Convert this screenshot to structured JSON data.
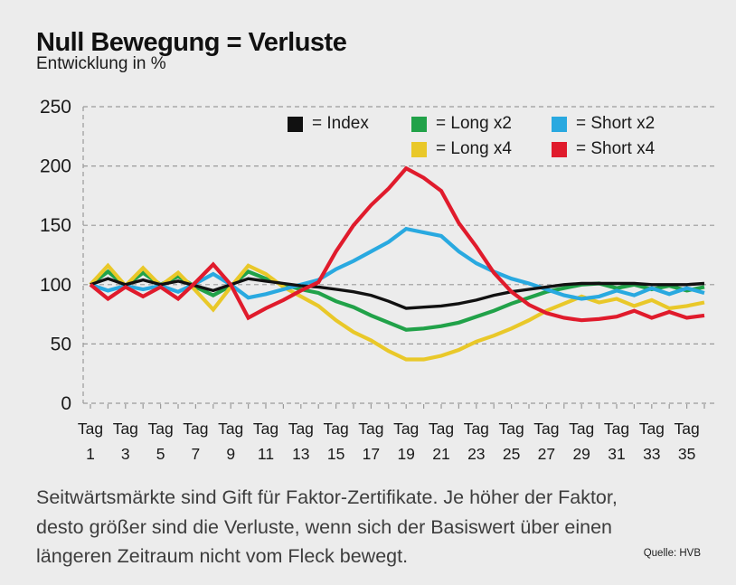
{
  "title": "Null Bewegung = Verluste",
  "subtitle": "Entwicklung in %",
  "legend": [
    {
      "label": "= Index",
      "color": "#111111"
    },
    {
      "label": "= Long x2",
      "color": "#21a249"
    },
    {
      "label": "= Short x2",
      "color": "#29a9e0"
    },
    {
      "label": "= Long x4",
      "color": "#e9c829"
    },
    {
      "label": "= Short x4",
      "color": "#e01b2c"
    }
  ],
  "caption": {
    "lines": [
      "Seitwärtsmärkte sind Gift für Faktor-Zertifikate. Je höher der Faktor,",
      "desto größer sind die Verluste, wenn sich der Basiswert über einen",
      "längeren Zeitraum nicht vom Fleck bewegt."
    ]
  },
  "source": "Quelle: HVB",
  "chart_data": {
    "type": "line",
    "title": "Null Bewegung = Verluste",
    "subtitle": "Entwicklung in %",
    "xlabel": "Tag",
    "ylabel": "Entwicklung in %",
    "ylim": [
      0,
      250
    ],
    "yticks": [
      0,
      50,
      100,
      150,
      200,
      250
    ],
    "grid": "horizontal-dashed",
    "legend_position": "top-inside",
    "x_tick_label_prefix": "Tag",
    "x_tick_days": [
      1,
      3,
      5,
      7,
      9,
      11,
      13,
      15,
      17,
      19,
      21,
      23,
      25,
      27,
      29,
      31,
      33,
      35
    ],
    "x": [
      1,
      2,
      3,
      4,
      5,
      6,
      7,
      8,
      9,
      10,
      11,
      12,
      13,
      14,
      15,
      16,
      17,
      18,
      19,
      20,
      21,
      22,
      23,
      24,
      25,
      26,
      27,
      28,
      29,
      30,
      31,
      32,
      33,
      34,
      35,
      36
    ],
    "series": [
      {
        "name": "Index",
        "color": "#111111",
        "values": [
          100,
          105,
          100,
          104,
          100,
          103,
          99,
          95,
          100,
          105,
          103,
          101,
          99,
          98,
          96,
          94,
          91,
          86,
          80,
          81,
          82,
          84,
          87,
          91,
          94,
          96,
          98,
          100,
          101,
          101,
          101,
          101,
          100,
          100,
          100,
          101
        ]
      },
      {
        "name": "Long x2",
        "color": "#21a249",
        "values": [
          100,
          111,
          99,
          110,
          100,
          107,
          98,
          91,
          99,
          111,
          105,
          100,
          96,
          93,
          86,
          81,
          74,
          68,
          62,
          63,
          65,
          68,
          73,
          78,
          84,
          89,
          94,
          97,
          100,
          101,
          97,
          100,
          96,
          99,
          95,
          98
        ]
      },
      {
        "name": "Short x2",
        "color": "#29a9e0",
        "values": [
          100,
          95,
          99,
          96,
          99,
          94,
          101,
          109,
          100,
          89,
          92,
          96,
          100,
          104,
          113,
          120,
          128,
          136,
          147,
          144,
          141,
          128,
          118,
          111,
          105,
          101,
          96,
          91,
          88,
          90,
          95,
          91,
          97,
          92,
          97,
          93
        ]
      },
      {
        "name": "Long x4",
        "color": "#e9c829",
        "values": [
          100,
          116,
          99,
          114,
          99,
          110,
          95,
          79,
          98,
          116,
          109,
          98,
          90,
          82,
          70,
          60,
          53,
          44,
          37,
          37,
          40,
          45,
          52,
          57,
          63,
          70,
          78,
          84,
          90,
          85,
          88,
          82,
          87,
          80,
          82,
          85
        ]
      },
      {
        "name": "Short x4",
        "color": "#e01b2c",
        "values": [
          100,
          88,
          98,
          90,
          98,
          88,
          102,
          117,
          100,
          72,
          80,
          87,
          95,
          102,
          128,
          150,
          167,
          181,
          198,
          190,
          179,
          152,
          132,
          110,
          94,
          83,
          76,
          72,
          70,
          71,
          73,
          78,
          72,
          77,
          72,
          74
        ]
      }
    ]
  }
}
